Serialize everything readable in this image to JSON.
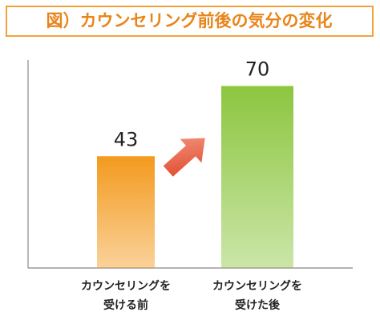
{
  "chart_data": {
    "type": "bar",
    "title": "図）カウンセリング前後の気分の変化",
    "categories": [
      [
        "カウンセリングを",
        "受ける前"
      ],
      [
        "カウンセリングを",
        "受けた後"
      ]
    ],
    "values": [
      43,
      70
    ],
    "colors": [
      "#f39a1e",
      "#8cc63f"
    ],
    "ylim": [
      0,
      80
    ]
  }
}
